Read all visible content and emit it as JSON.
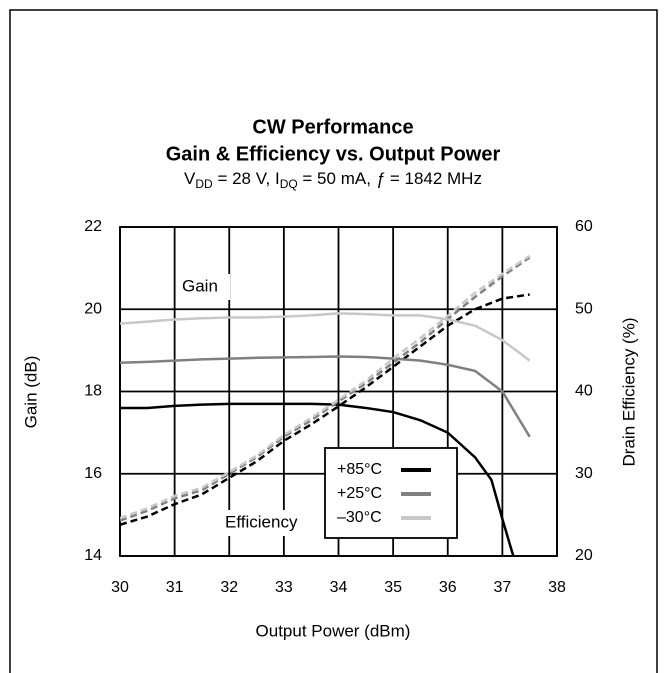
{
  "chart_data": {
    "type": "line",
    "title": [
      "CW Performance",
      "Gain & Efficiency vs. Output Power"
    ],
    "subtitle": [
      "V",
      "DD",
      " = 28 V, I",
      "DQ",
      " = 50 mA, ",
      "ƒ",
      " = 1842 MHz"
    ],
    "xlabel": "Output Power (dBm)",
    "ylabel": "Gain (dB)",
    "y2label": "Drain Efficiency (%)",
    "annotations": [
      "Gain",
      "Efficiency"
    ],
    "xlim": [
      30,
      38
    ],
    "xticks": [
      30,
      31,
      32,
      33,
      34,
      35,
      36,
      37,
      38
    ],
    "ylim": [
      14,
      22
    ],
    "yticks": [
      14,
      16,
      18,
      20,
      22
    ],
    "y2lim": [
      20,
      60
    ],
    "y2ticks": [
      20,
      30,
      40,
      50,
      60
    ],
    "grid": true,
    "legend": "lower-right",
    "series": [
      {
        "name": "+85°C",
        "color": "#000000",
        "x": [
          30,
          30.5,
          31,
          31.5,
          32,
          32.5,
          33,
          33.5,
          34,
          34.5,
          35,
          35.5,
          36,
          36.5,
          36.8,
          37,
          37.2
        ],
        "gain": [
          17.6,
          17.6,
          17.65,
          17.68,
          17.7,
          17.7,
          17.7,
          17.7,
          17.68,
          17.6,
          17.5,
          17.3,
          17.0,
          16.4,
          15.85,
          14.9,
          14.0
        ],
        "efficiency_x": [
          30,
          30.5,
          31,
          31.5,
          32,
          32.5,
          33,
          33.5,
          34,
          34.5,
          35,
          35.5,
          36,
          36.5,
          37,
          37.5
        ],
        "efficiency": [
          23.8,
          24.8,
          26.3,
          27.5,
          29.5,
          31.5,
          34,
          36,
          38.2,
          40.5,
          43,
          45.5,
          48,
          50,
          51.3,
          51.8
        ]
      },
      {
        "name": "+25°C",
        "color": "#808080",
        "x": [
          30,
          30.5,
          31,
          31.5,
          32,
          32.5,
          33,
          33.5,
          34,
          34.5,
          35,
          35.5,
          36,
          36.5,
          37,
          37.5
        ],
        "gain": [
          18.7,
          18.72,
          18.75,
          18.78,
          18.8,
          18.82,
          18.83,
          18.84,
          18.85,
          18.84,
          18.8,
          18.75,
          18.65,
          18.5,
          18.0,
          16.9
        ],
        "efficiency_x": [
          30,
          30.5,
          31,
          31.5,
          32,
          32.5,
          33,
          33.5,
          34,
          34.5,
          35,
          35.5,
          36,
          36.5,
          37,
          37.5
        ],
        "efficiency": [
          24.3,
          25.5,
          27,
          28,
          30,
          32,
          34.5,
          36.5,
          38.8,
          41,
          43.5,
          46,
          48.8,
          51.5,
          54,
          56.3
        ]
      },
      {
        "name": "–30°C",
        "color": "#c8c8c8",
        "x": [
          30,
          30.5,
          31,
          31.5,
          32,
          32.5,
          33,
          33.5,
          34,
          34.5,
          35,
          35.5,
          36,
          36.5,
          37,
          37.5
        ],
        "gain": [
          19.65,
          19.7,
          19.75,
          19.78,
          19.8,
          19.8,
          19.82,
          19.85,
          19.9,
          19.88,
          19.85,
          19.85,
          19.75,
          19.6,
          19.25,
          18.75
        ],
        "efficiency_x": [
          30,
          30.5,
          31,
          31.5,
          32,
          32.5,
          33,
          33.5,
          34,
          34.5,
          35,
          35.5,
          36,
          36.5,
          37,
          37.5
        ],
        "efficiency": [
          24.6,
          25.8,
          27.3,
          28.3,
          30.2,
          32.2,
          34.7,
          36.8,
          39,
          41.3,
          44,
          46.5,
          49.2,
          52,
          54.3,
          56.5
        ]
      }
    ]
  }
}
